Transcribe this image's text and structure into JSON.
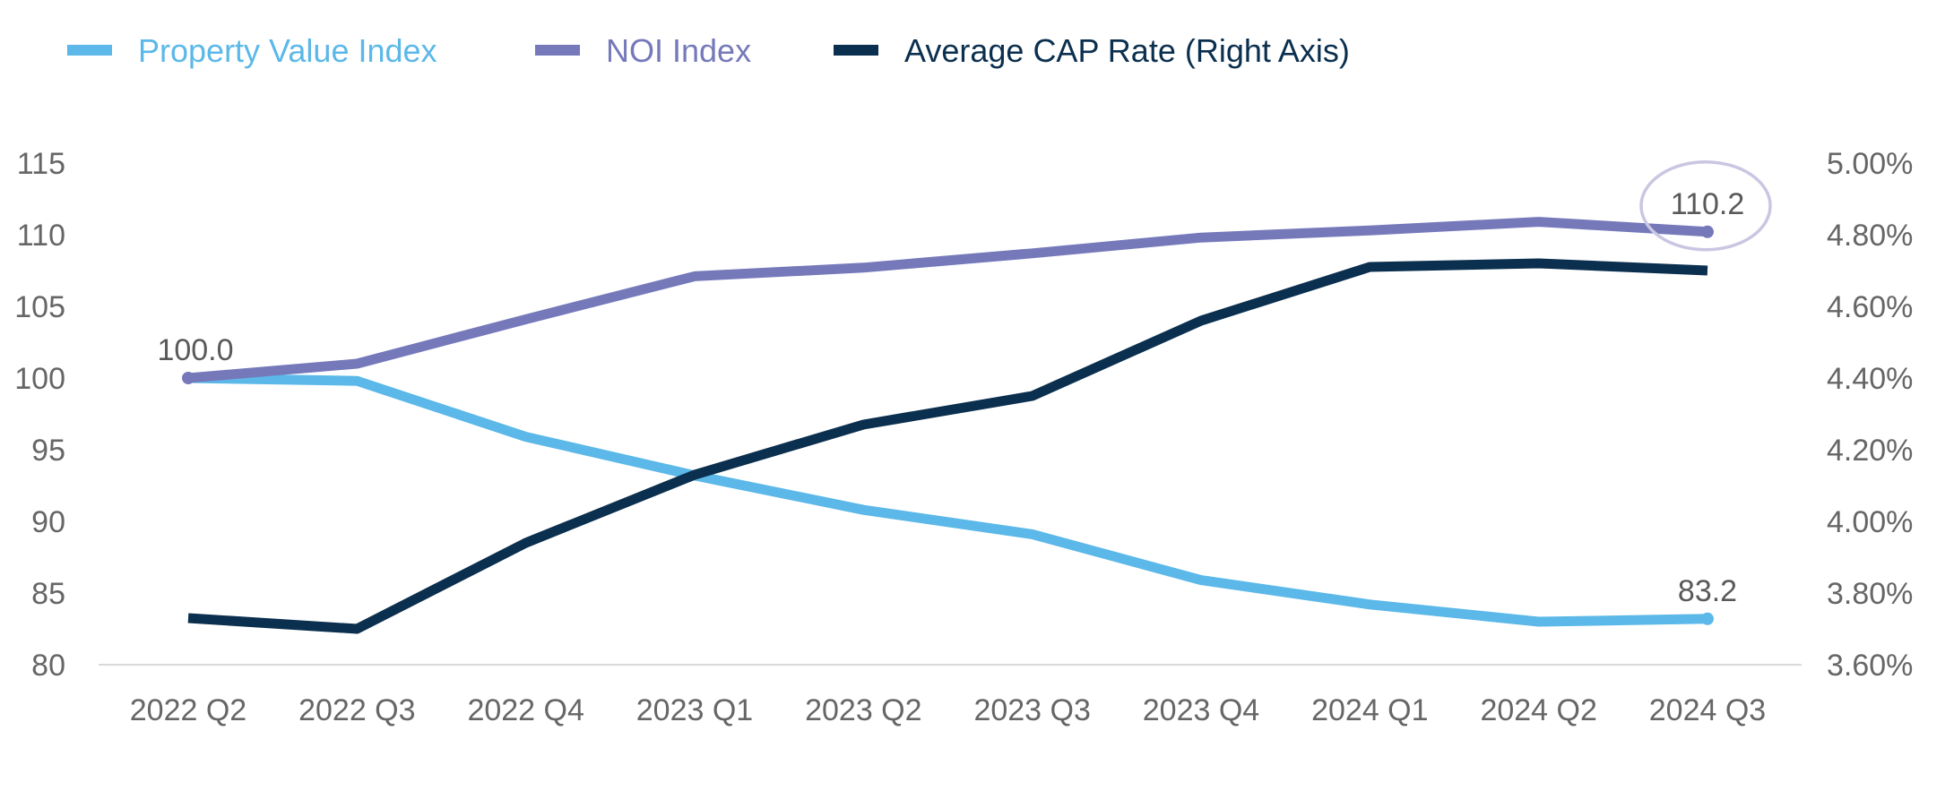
{
  "chart_data": {
    "type": "line",
    "title": "",
    "categories": [
      "2022 Q2",
      "2022 Q3",
      "2022 Q4",
      "2023 Q1",
      "2023 Q2",
      "2023 Q3",
      "2023 Q4",
      "2024 Q1",
      "2024 Q2",
      "2024 Q3"
    ],
    "y_left": {
      "min": 80,
      "max": 115,
      "step": 5,
      "tick_labels": [
        "80",
        "85",
        "90",
        "95",
        "100",
        "105",
        "110",
        "115"
      ]
    },
    "y_right": {
      "min": 3.6,
      "max": 5.0,
      "step": 0.2,
      "tick_labels": [
        "3.60%",
        "3.80%",
        "4.00%",
        "4.20%",
        "4.40%",
        "4.60%",
        "4.80%",
        "5.00%"
      ]
    },
    "series": [
      {
        "name": "Property Value Index",
        "axis": "left",
        "color": "#5BB8E8",
        "values": [
          100.0,
          99.8,
          95.9,
          93.2,
          90.8,
          89.1,
          85.9,
          84.2,
          83.0,
          83.2
        ]
      },
      {
        "name": "NOI Index",
        "axis": "left",
        "color": "#7579BA",
        "values": [
          100.0,
          101.0,
          104.1,
          107.1,
          107.7,
          108.7,
          109.8,
          110.3,
          110.9,
          110.2
        ]
      },
      {
        "name": "Average CAP Rate (Right Axis)",
        "axis": "right",
        "color": "#0B2F4E",
        "values": [
          3.73,
          3.7,
          3.94,
          4.13,
          4.27,
          4.35,
          4.56,
          4.71,
          4.72,
          4.7
        ]
      }
    ],
    "data_labels": [
      {
        "series": 1,
        "index": 0,
        "text": "100.0"
      },
      {
        "series": 1,
        "index": 9,
        "text": "110.2",
        "highlight": true
      },
      {
        "series": 0,
        "index": 9,
        "text": "83.2"
      }
    ],
    "legend_position": "top-left",
    "grid": false,
    "highlight_color": "#C9C6E2"
  }
}
